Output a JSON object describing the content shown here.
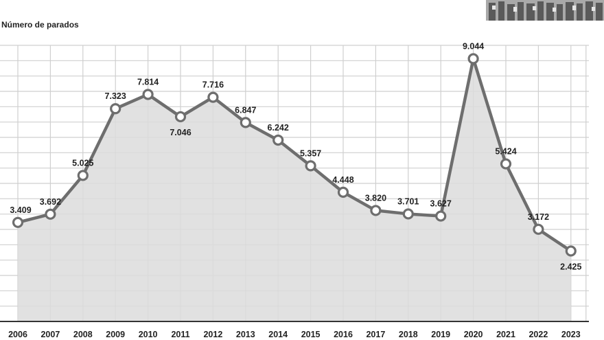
{
  "chart_data": {
    "type": "area",
    "ylabel": "Número de parados",
    "xlabel": "",
    "title": "",
    "categories": [
      "2006",
      "2007",
      "2008",
      "2009",
      "2010",
      "2011",
      "2012",
      "2013",
      "2014",
      "2015",
      "2016",
      "2017",
      "2018",
      "2019",
      "2020",
      "2021",
      "2022",
      "2023"
    ],
    "values": [
      3409,
      3692,
      5025,
      7323,
      7814,
      7046,
      7716,
      6847,
      6242,
      5357,
      4448,
      3820,
      3701,
      3627,
      9044,
      5424,
      3172,
      2425
    ],
    "data_labels": [
      "3.409",
      "3.692",
      "5.025",
      "7.323",
      "7.814",
      "7.046",
      "7.716",
      "6.847",
      "6.242",
      "5.357",
      "4.448",
      "3.820",
      "3.701",
      "3.627",
      "9.044",
      "5.424",
      "3.172",
      "2.425"
    ],
    "ylim": [
      0,
      10000
    ],
    "grid": true,
    "legend": "none"
  },
  "colors": {
    "line": "#6e6e6e",
    "fill": "#dcdcdc",
    "grid": "#cfcfcf",
    "text": "#222222",
    "axis": "#333333"
  }
}
